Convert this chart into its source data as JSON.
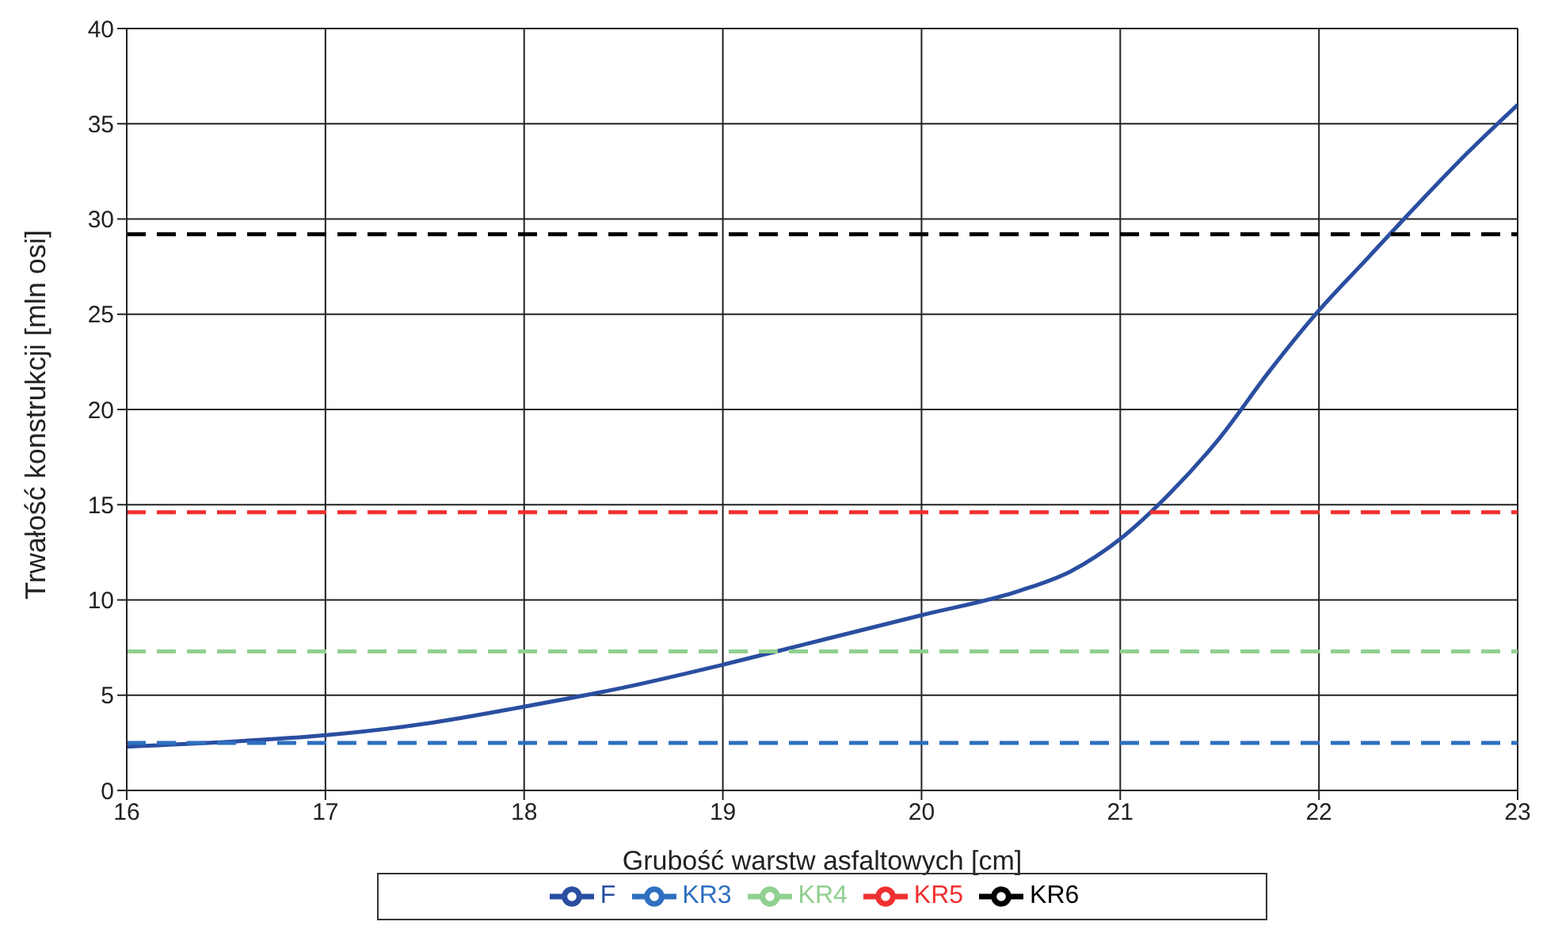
{
  "chart_data": {
    "type": "line",
    "xlabel": "Grubość warstw asfaltowych [cm]",
    "ylabel": "Trwałość konstrukcji [mln osi]",
    "xlim": [
      16,
      23
    ],
    "xticks": [
      16,
      17,
      18,
      19,
      20,
      21,
      22,
      23
    ],
    "ylim": [
      0,
      40
    ],
    "yticks": [
      0,
      5,
      10,
      15,
      20,
      25,
      30,
      35,
      40
    ],
    "grid": true,
    "legend": "bottom",
    "marker": "none",
    "series": [
      {
        "name": "F",
        "color": "#2a4ea0",
        "line_style": "solid",
        "x": [
          16,
          16.5,
          17,
          17.5,
          18,
          18.5,
          19,
          19.5,
          20,
          20.5,
          20.75,
          21,
          21.25,
          21.5,
          21.75,
          22,
          22.25,
          22.5,
          22.75,
          23
        ],
        "values": [
          2.3,
          2.55,
          2.9,
          3.5,
          4.4,
          5.4,
          6.6,
          7.9,
          9.2,
          10.5,
          11.5,
          13.2,
          15.6,
          18.5,
          22,
          25.2,
          28,
          30.8,
          33.5,
          36
        ]
      },
      {
        "name": "KR3",
        "color": "#2e6fc0",
        "line_style": "dashed",
        "x": [
          16,
          23
        ],
        "values": [
          2.5,
          2.5
        ]
      },
      {
        "name": "KR4",
        "color": "#90d090",
        "line_style": "dashed",
        "x": [
          16,
          23
        ],
        "values": [
          7.3,
          7.3
        ]
      },
      {
        "name": "KR5",
        "color": "#f03030",
        "line_style": "dashed",
        "x": [
          16,
          23
        ],
        "values": [
          14.6,
          14.6
        ]
      },
      {
        "name": "KR6",
        "color": "#000000",
        "line_style": "dashed",
        "x": [
          16,
          23
        ],
        "values": [
          29.2,
          29.2
        ]
      }
    ]
  }
}
